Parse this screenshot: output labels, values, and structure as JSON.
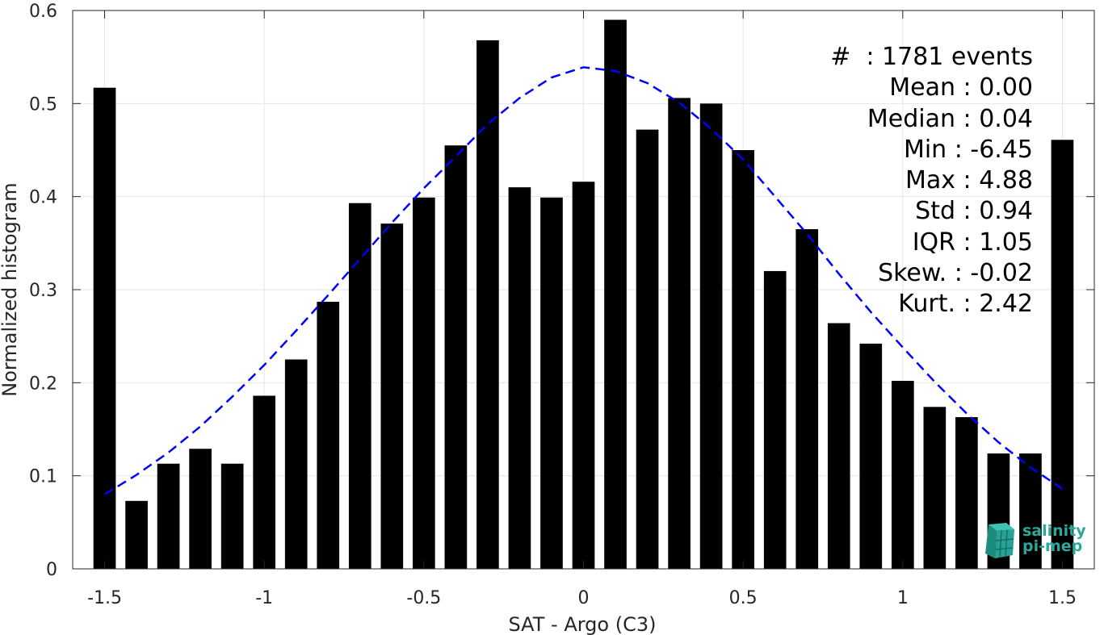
{
  "chart_data": {
    "type": "bar",
    "xlabel": "SAT - Argo (C3)",
    "ylabel": "Normalized histogram",
    "xlim": [
      -1.6,
      1.6
    ],
    "ylim": [
      0,
      0.6
    ],
    "xticks": [
      -1.5,
      -1,
      -0.5,
      0,
      0.5,
      1,
      1.5
    ],
    "xtick_labels": [
      "-1.5",
      "-1",
      "-0.5",
      "0",
      "0.5",
      "1",
      "1.5"
    ],
    "yticks": [
      0,
      0.1,
      0.2,
      0.3,
      0.4,
      0.5,
      0.6
    ],
    "ytick_labels": [
      "0",
      "0.1",
      "0.2",
      "0.3",
      "0.4",
      "0.5",
      "0.6"
    ],
    "grid": true,
    "bar_width": 0.07,
    "x": [
      -1.5,
      -1.4,
      -1.3,
      -1.2,
      -1.1,
      -1.0,
      -0.9,
      -0.8,
      -0.7,
      -0.6,
      -0.5,
      -0.4,
      -0.3,
      -0.2,
      -0.1,
      0.0,
      0.1,
      0.2,
      0.3,
      0.4,
      0.5,
      0.6,
      0.7,
      0.8,
      0.9,
      1.0,
      1.1,
      1.2,
      1.3,
      1.4,
      1.5
    ],
    "values": [
      0.517,
      0.073,
      0.113,
      0.129,
      0.113,
      0.186,
      0.225,
      0.287,
      0.393,
      0.371,
      0.399,
      0.455,
      0.568,
      0.41,
      0.399,
      0.416,
      0.59,
      0.472,
      0.506,
      0.5,
      0.45,
      0.32,
      0.365,
      0.264,
      0.242,
      0.202,
      0.174,
      0.163,
      0.124,
      0.124,
      0.461
    ],
    "bar_color": "#000000",
    "fit_curve": {
      "style": "dashed",
      "color": "#0000ff",
      "x": [
        -1.5,
        -1.4,
        -1.3,
        -1.2,
        -1.1,
        -1.0,
        -0.9,
        -0.8,
        -0.7,
        -0.6,
        -0.5,
        -0.4,
        -0.3,
        -0.2,
        -0.1,
        0.0,
        0.1,
        0.2,
        0.3,
        0.4,
        0.5,
        0.6,
        0.7,
        0.8,
        0.9,
        1.0,
        1.1,
        1.2,
        1.3,
        1.4,
        1.5
      ],
      "y": [
        0.08,
        0.101,
        0.125,
        0.153,
        0.185,
        0.219,
        0.256,
        0.294,
        0.333,
        0.372,
        0.409,
        0.443,
        0.478,
        0.506,
        0.528,
        0.539,
        0.535,
        0.522,
        0.501,
        0.473,
        0.44,
        0.4,
        0.36,
        0.317,
        0.276,
        0.238,
        0.201,
        0.167,
        0.136,
        0.109,
        0.086
      ]
    },
    "stats_lines": [
      "#  : 1781 events",
      "Mean : 0.00",
      "Median : 0.04",
      "Min : -6.45",
      "Max : 4.88",
      "Std : 0.94",
      "IQR : 1.05",
      "Skew. : -0.02",
      "Kurt. : 2.42"
    ]
  },
  "logo": {
    "line1": "salinity",
    "line2": "pi-mep",
    "color": "#2aa89a"
  }
}
